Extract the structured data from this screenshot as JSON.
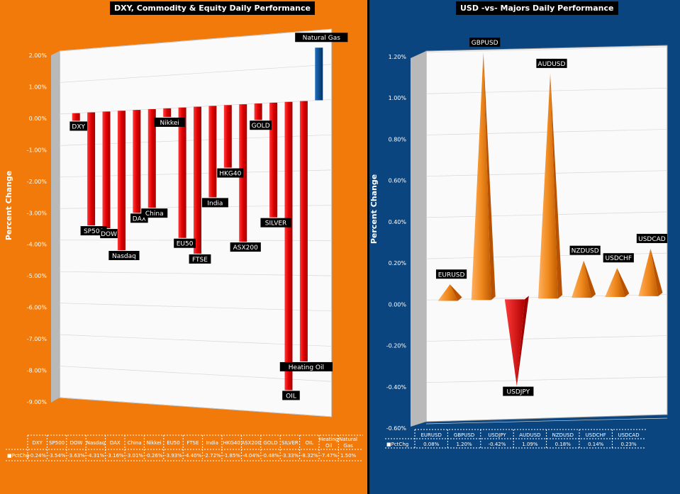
{
  "left": {
    "title": "DXY, Commodity & Equity Daily Performance",
    "ylabel": "Percent Change",
    "ticks": [
      "2.00%",
      "1.00%",
      "0.00%",
      "-1.00%",
      "-2.00%",
      "-3.00%",
      "-4.00%",
      "-5.00%",
      "-6.00%",
      "-7.00%",
      "-8.00%",
      "-9.00%"
    ],
    "table_header": "",
    "table_row_label": "PctChg",
    "table_values": [
      "-0.24%",
      "-3.54%",
      "-3.63%",
      "-4.31%",
      "-3.16%",
      "-3.01%",
      "-0.26%",
      "-3.93%",
      "-4.40%",
      "-2.72%",
      "-1.85%",
      "-4.04%",
      "-0.48%",
      "-3.33%",
      "-8.32%",
      "-7.47%",
      "1.50%"
    ]
  },
  "right": {
    "title": "USD -vs- Majors Daily Performance",
    "ylabel": "Percent Change",
    "ticks": [
      "1.20%",
      "1.00%",
      "0.80%",
      "0.60%",
      "0.40%",
      "0.20%",
      "0.00%",
      "-0.20%",
      "-0.40%",
      "-0.60%"
    ],
    "table_row_label": "PctChg",
    "table_values": [
      "0.08%",
      "1.20%",
      "-0.42%",
      "1.09%",
      "0.18%",
      "0.14%",
      "0.23%"
    ]
  },
  "chart_data": [
    {
      "type": "bar",
      "title": "DXY, Commodity & Equity Daily Performance",
      "ylabel": "Percent Change",
      "ylim": [
        -9,
        2
      ],
      "categories": [
        "DXY",
        "SP500",
        "DOW",
        "Nasdaq",
        "DAX",
        "China",
        "Nikkei",
        "EU50",
        "FTSE",
        "India",
        "HKG40",
        "ASX200",
        "GOLD",
        "SILVER",
        "OIL",
        "Heating Oil",
        "Natural Gas"
      ],
      "point_labels": [
        "DXY",
        "SP500",
        "DOW",
        "Nasdaq",
        "DAX",
        "China",
        "Nikkei",
        "EU50",
        "FTSE",
        "India",
        "HKG40",
        "ASX200",
        "GOLD",
        "SILVER",
        "OIL",
        "Heating Oil",
        "Natural Gas"
      ],
      "series": [
        {
          "name": "PctChg",
          "values": [
            -0.24,
            -3.54,
            -3.63,
            -4.31,
            -3.16,
            -3.01,
            -0.26,
            -3.93,
            -4.4,
            -2.72,
            -1.85,
            -4.04,
            -0.48,
            -3.33,
            -8.32,
            -7.47,
            1.5
          ]
        }
      ],
      "colors": {
        "negative": "#e00000",
        "positive": "#003d7a"
      }
    },
    {
      "type": "bar",
      "title": "USD -vs- Majors Daily Performance",
      "ylabel": "Percent Change",
      "ylim": [
        -0.6,
        1.2
      ],
      "categories": [
        "EURUSD",
        "GBPUSD",
        "USDJPY",
        "AUDUSD",
        "NZDUSD",
        "USDCHF",
        "USDCAD"
      ],
      "point_labels": [
        "EURUSD",
        "GBPUSD",
        "USDJPY",
        "AUDUSD",
        "NZDUSD",
        "USDCHF",
        "USDCAD"
      ],
      "series": [
        {
          "name": "PctChg",
          "values": [
            0.08,
            1.2,
            -0.42,
            1.09,
            0.18,
            0.14,
            0.23
          ]
        }
      ],
      "colors": {
        "negative": "#e00000",
        "positive": "#f08a1e"
      }
    }
  ]
}
